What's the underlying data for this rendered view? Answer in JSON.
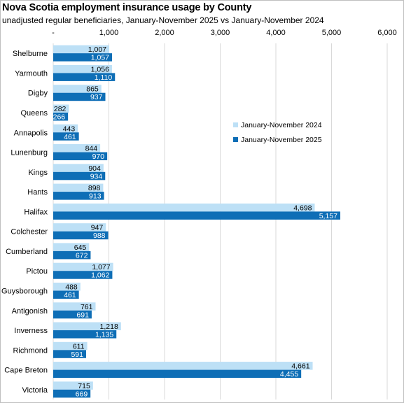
{
  "chart_data": {
    "type": "bar",
    "orientation": "horizontal",
    "title": "Nova Scotia employment insurance usage by County",
    "subtitle": "unadjusted regular beneficiaries,  January-November  2025 vs January-November  2024",
    "xlim": [
      0,
      6000
    ],
    "x_ticks": [
      0,
      1000,
      2000,
      3000,
      4000,
      5000,
      6000
    ],
    "x_tick_labels": [
      "-",
      "1,000",
      "2,000",
      "3,000",
      "4,000",
      "5,000",
      "6,000"
    ],
    "grid": "vertical",
    "legend_position": "right",
    "categories": [
      "Shelburne",
      "Yarmouth",
      "Digby",
      "Queens",
      "Annapolis",
      "Lunenburg",
      "Kings",
      "Hants",
      "Halifax",
      "Colchester",
      "Cumberland",
      "Pictou",
      "Guysborough",
      "Antigonish",
      "Inverness",
      "Richmond",
      "Cape Breton",
      "Victoria"
    ],
    "series": [
      {
        "name": "January-November 2024",
        "color": "#bde0f6",
        "values": [
          1007,
          1056,
          865,
          282,
          443,
          844,
          904,
          898,
          4698,
          947,
          645,
          1077,
          488,
          761,
          1218,
          611,
          4661,
          715
        ],
        "labels": [
          "1,007",
          "1,056",
          "865",
          "282",
          "443",
          "844",
          "904",
          "898",
          "4,698",
          "947",
          "645",
          "1,077",
          "488",
          "761",
          "1,218",
          "611",
          "4,661",
          "715"
        ]
      },
      {
        "name": "January-November 2025",
        "color": "#0e6eb6",
        "values": [
          1057,
          1110,
          937,
          266,
          461,
          970,
          934,
          913,
          5157,
          988,
          672,
          1062,
          461,
          691,
          1135,
          591,
          4455,
          669
        ],
        "labels": [
          "1,057",
          "1,110",
          "937",
          "266",
          "461",
          "970",
          "934",
          "913",
          "5,157",
          "988",
          "672",
          "1,062",
          "461",
          "691",
          "1,135",
          "591",
          "4,455",
          "669"
        ]
      }
    ]
  }
}
